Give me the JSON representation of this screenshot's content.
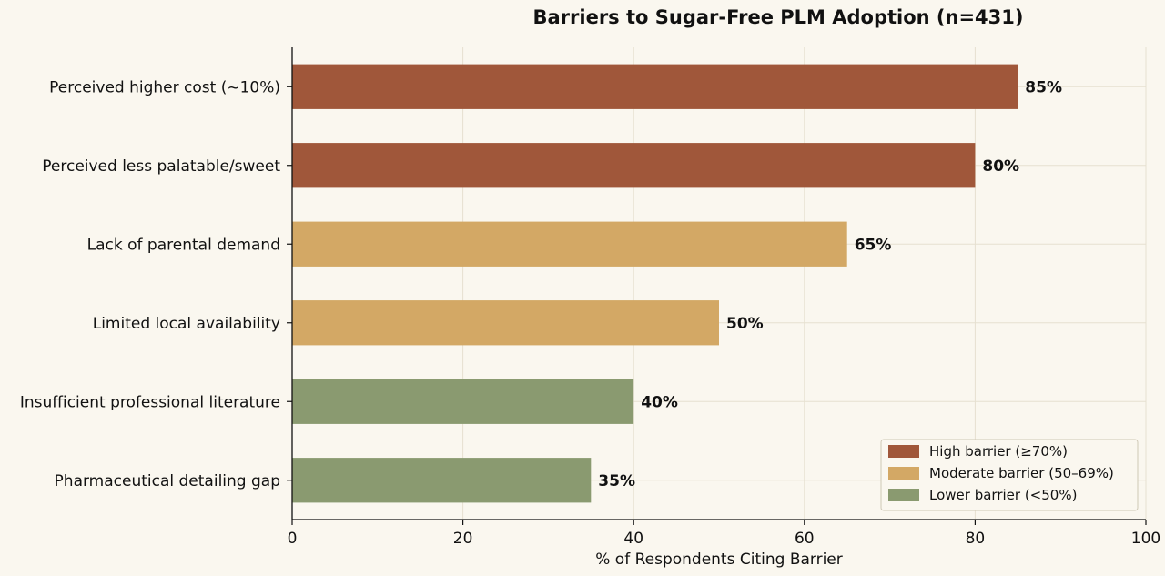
{
  "chart_data": {
    "type": "bar",
    "orientation": "horizontal",
    "title": "Barriers to Sugar-Free PLM Adoption (n=431)",
    "xlabel": "% of Respondents Citing Barrier",
    "ylabel": "",
    "xlim": [
      0,
      100
    ],
    "xticks": [
      "0",
      "20",
      "40",
      "60",
      "80",
      "100"
    ],
    "grid": true,
    "legend_position": "bottom-right",
    "categories": [
      "Perceived higher cost (~10%)",
      "Perceived less palatable/sweet",
      "Lack of parental demand",
      "Limited local availability",
      "Insufficient professional literature",
      "Pharmaceutical detailing gap"
    ],
    "values": [
      85,
      80,
      65,
      50,
      40,
      35
    ],
    "value_labels": [
      "85%",
      "80%",
      "65%",
      "50%",
      "40%",
      "35%"
    ],
    "groups": [
      "high",
      "high",
      "moderate",
      "moderate",
      "lower",
      "lower"
    ],
    "legend": [
      {
        "key": "high",
        "label": "High barrier (≥70%)",
        "color": "#a0573a"
      },
      {
        "key": "moderate",
        "label": "Moderate barrier (50–69%)",
        "color": "#d3a865"
      },
      {
        "key": "lower",
        "label": "Lower barrier (<50%)",
        "color": "#8a9a70"
      }
    ]
  }
}
